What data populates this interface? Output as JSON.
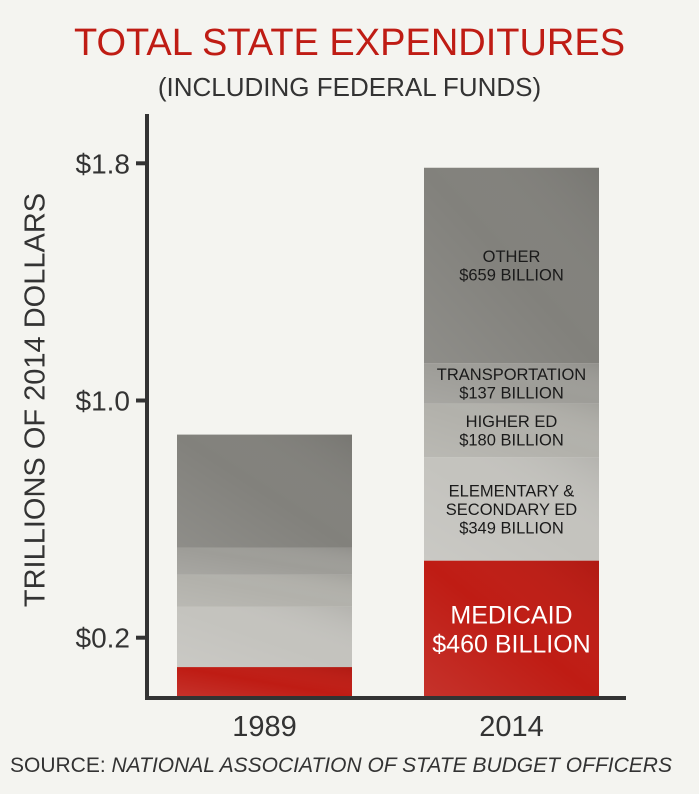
{
  "chart_data": {
    "type": "bar",
    "stacked": true,
    "title": "TOTAL STATE EXPENDITURES",
    "subtitle": "(INCLUDING FEDERAL FUNDS)",
    "xlabel": "",
    "ylabel": "TRILLIONS OF 2014 DOLLARS",
    "ylim": [
      0,
      1.9
    ],
    "yticks": [
      {
        "value": 0.2,
        "label": "$0.2"
      },
      {
        "value": 1.0,
        "label": "$1.0"
      },
      {
        "value": 1.8,
        "label": "$1.8"
      }
    ],
    "categories": [
      "1989",
      "2014"
    ],
    "series": [
      {
        "name": "Medicaid",
        "color": "#bf1c14",
        "values": [
          0.101,
          0.46
        ],
        "labels": [
          null,
          [
            "MEDICAID",
            "$460 BILLION"
          ]
        ],
        "label_color": "#ffffff"
      },
      {
        "name": "Elementary & Secondary Ed",
        "color": "#c4c3be",
        "values": [
          0.203,
          0.349
        ],
        "labels": [
          null,
          [
            "ELEMENTARY &",
            "SECONDARY ED",
            "$349 BILLION"
          ]
        ],
        "label_color": "#1a1a1a"
      },
      {
        "name": "Higher Ed",
        "color": "#b2b1ab",
        "values": [
          0.108,
          0.18
        ],
        "labels": [
          null,
          [
            "HIGHER ED",
            "$180 BILLION"
          ]
        ],
        "label_color": "#1a1a1a"
      },
      {
        "name": "Transportation",
        "color": "#9e9d98",
        "values": [
          0.091,
          0.137
        ],
        "labels": [
          null,
          [
            "TRANSPORTATION",
            "$137 BILLION"
          ]
        ],
        "label_color": "#1a1a1a"
      },
      {
        "name": "Other",
        "color": "#82817c",
        "values": [
          0.382,
          0.659
        ],
        "labels": [
          null,
          [
            "OTHER",
            "$659 BILLION"
          ]
        ],
        "label_color": "#1a1a1a"
      }
    ],
    "grid": false,
    "legend": "none"
  },
  "source": {
    "prefix": "SOURCE: ",
    "name": "NATIONAL ASSOCIATION OF STATE BUDGET OFFICERS"
  }
}
